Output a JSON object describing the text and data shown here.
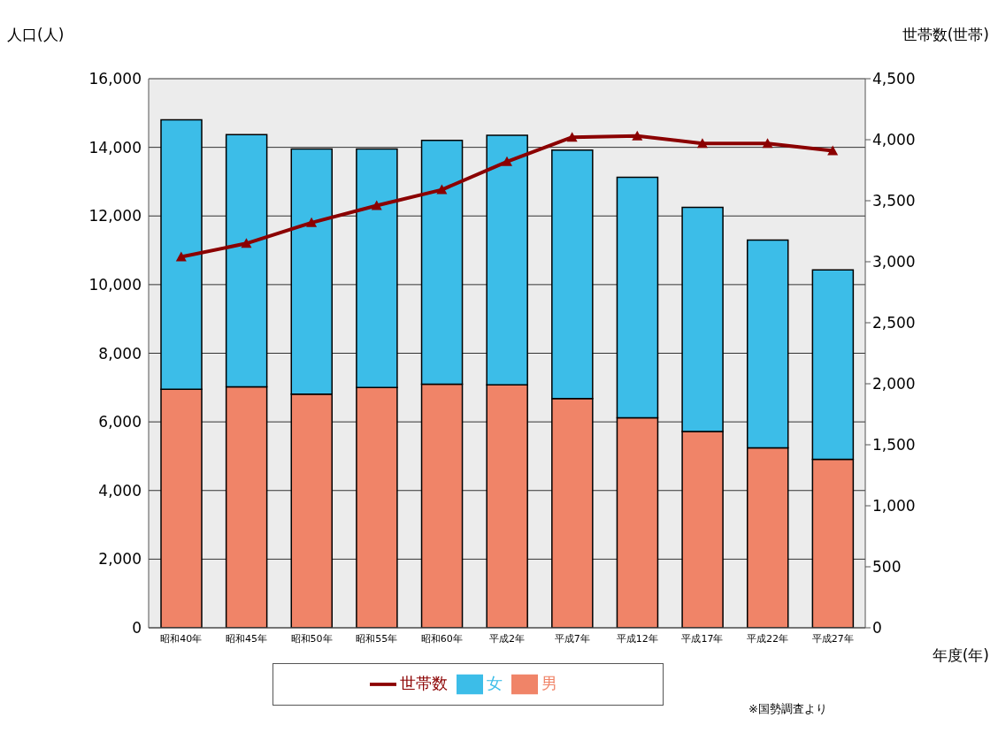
{
  "chart_data": {
    "type": "bar",
    "stacked": true,
    "xlabel": "年度(年)",
    "ylabel": "人口(人)",
    "y2label": "世帯数(世帯)",
    "categories": [
      "昭和40年",
      "昭和45年",
      "昭和50年",
      "昭和55年",
      "昭和60年",
      "平成2年",
      "平成7年",
      "平成12年",
      "平成17年",
      "平成22年",
      "平成27年"
    ],
    "series": [
      {
        "name": "男",
        "color": "#f08468",
        "values": [
          6950,
          7020,
          6810,
          7000,
          7100,
          7080,
          6680,
          6120,
          5720,
          5240,
          4910
        ]
      },
      {
        "name": "女",
        "color": "#3cbde8",
        "values": [
          7850,
          7350,
          7140,
          6950,
          7100,
          7270,
          7240,
          7010,
          6530,
          6060,
          5520
        ]
      },
      {
        "name": "世帯数",
        "type": "line",
        "axis": "y2",
        "color": "#8b0000",
        "marker": "triangle",
        "values": [
          3040,
          3150,
          3320,
          3460,
          3590,
          3820,
          4020,
          4030,
          3970,
          3970,
          3910
        ]
      }
    ],
    "ylim": [
      0,
      16000
    ],
    "yticks": [
      {
        "value": 0,
        "label": "0"
      },
      {
        "value": 2000,
        "label": "2,000"
      },
      {
        "value": 4000,
        "label": "4,000"
      },
      {
        "value": 6000,
        "label": "6,000"
      },
      {
        "value": 8000,
        "label": "8,000"
      },
      {
        "value": 10000,
        "label": "10,000"
      },
      {
        "value": 12000,
        "label": "12,000"
      },
      {
        "value": 14000,
        "label": "14,000"
      },
      {
        "value": 16000,
        "label": "16,000"
      }
    ],
    "y2lim": [
      0,
      4500
    ],
    "y2ticks": [
      {
        "value": 0,
        "label": "0"
      },
      {
        "value": 500,
        "label": "500"
      },
      {
        "value": 1000,
        "label": "1,000"
      },
      {
        "value": 1500,
        "label": "1,500"
      },
      {
        "value": 2000,
        "label": "2,000"
      },
      {
        "value": 2500,
        "label": "2,500"
      },
      {
        "value": 3000,
        "label": "3,000"
      },
      {
        "value": 3500,
        "label": "3,500"
      },
      {
        "value": 4000,
        "label": "4,000"
      },
      {
        "value": 4500,
        "label": "4,500"
      }
    ],
    "grid": "y",
    "legend": "bottom",
    "annotations": [
      "※国勢調査より"
    ]
  }
}
